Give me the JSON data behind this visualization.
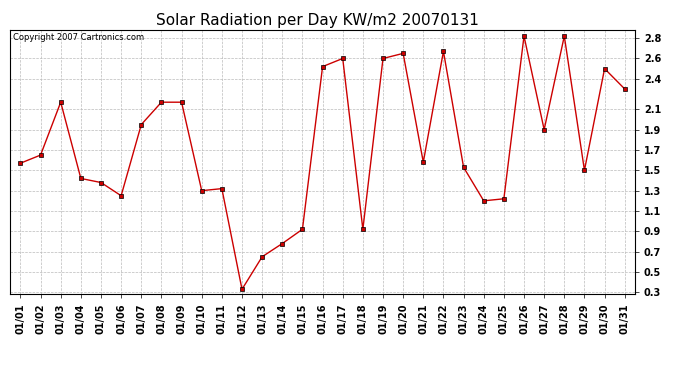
{
  "title": "Solar Radiation per Day KW/m2 20070131",
  "copyright_text": "Copyright 2007 Cartronics.com",
  "x_labels": [
    "01/01",
    "01/02",
    "01/03",
    "01/04",
    "01/05",
    "01/06",
    "01/07",
    "01/08",
    "01/09",
    "01/10",
    "01/11",
    "01/12",
    "01/13",
    "01/14",
    "01/15",
    "01/16",
    "01/17",
    "01/18",
    "01/19",
    "01/20",
    "01/21",
    "01/22",
    "01/23",
    "01/24",
    "01/25",
    "01/26",
    "01/27",
    "01/28",
    "01/29",
    "01/30",
    "01/31"
  ],
  "y_values": [
    1.57,
    1.65,
    2.17,
    1.42,
    1.38,
    1.25,
    1.95,
    2.17,
    2.17,
    1.3,
    1.32,
    0.33,
    0.65,
    0.78,
    0.92,
    2.52,
    2.6,
    0.92,
    2.6,
    2.65,
    1.58,
    2.67,
    1.53,
    1.2,
    1.22,
    2.82,
    1.9,
    2.82,
    1.5,
    2.5,
    2.3
  ],
  "line_color": "#cc0000",
  "marker": "s",
  "marker_size": 2.5,
  "ylim_min": 0.28,
  "ylim_max": 2.88,
  "yticks": [
    0.3,
    0.5,
    0.7,
    0.9,
    1.1,
    1.3,
    1.5,
    1.7,
    1.9,
    2.1,
    2.4,
    2.6,
    2.8
  ],
  "background_color": "#ffffff",
  "grid_color": "#bbbbbb",
  "title_fontsize": 11,
  "copyright_fontsize": 6,
  "tick_fontsize": 7
}
